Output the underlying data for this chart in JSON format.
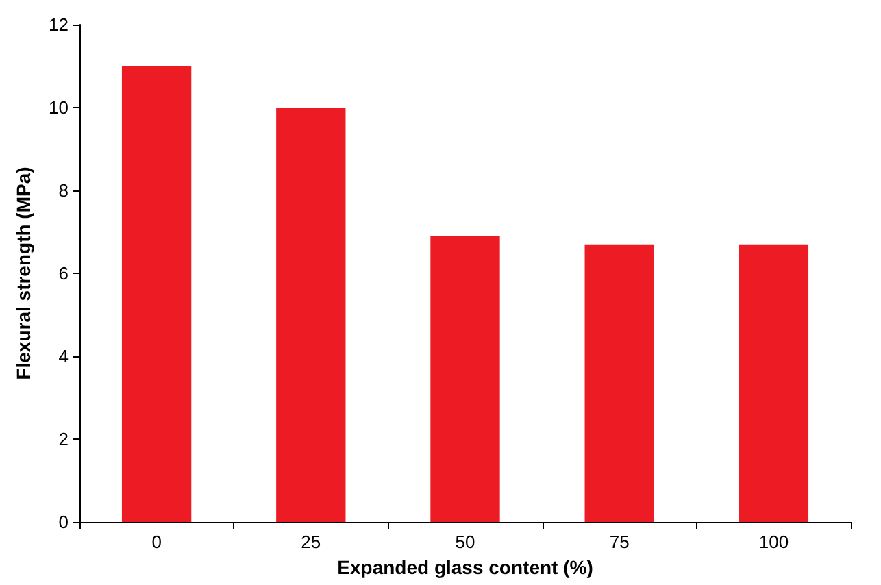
{
  "chart_data": {
    "type": "bar",
    "xlabel": "Expanded glass content (%)",
    "ylabel": "Flexural strength (MPa)",
    "categories": [
      "0",
      "25",
      "50",
      "75",
      "100"
    ],
    "values": [
      11.0,
      10.0,
      6.9,
      6.7,
      6.7
    ],
    "color": "#ed1c24",
    "ylim": [
      0,
      12
    ],
    "yticks": [
      0,
      2,
      4,
      6,
      8,
      10,
      12
    ],
    "grid": false
  }
}
